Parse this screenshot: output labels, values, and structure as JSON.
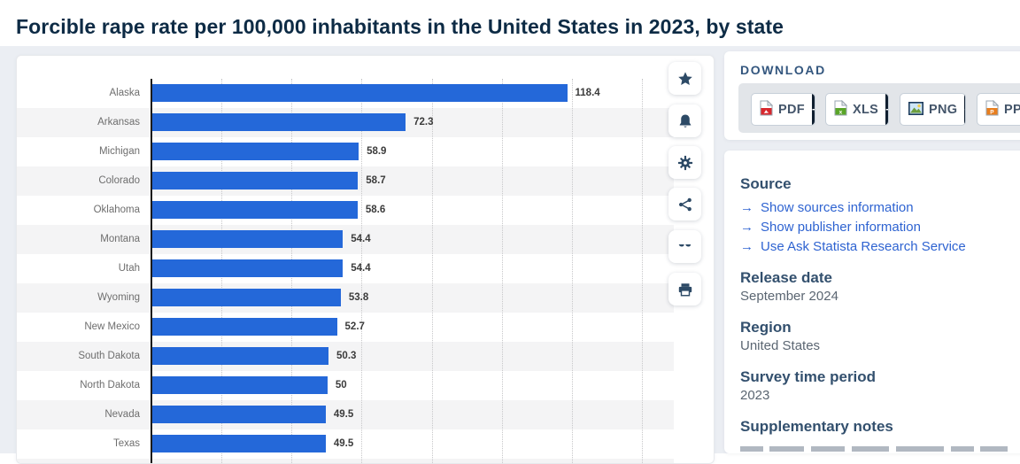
{
  "page": {
    "title": "Forcible rape rate per 100,000 inhabitants in the United States in 2023, by state"
  },
  "chart_data": {
    "type": "bar",
    "orientation": "horizontal",
    "title": "Forcible rape rate per 100,000 inhabitants in the United States in 2023, by state",
    "categories": [
      "Alaska",
      "Arkansas",
      "Michigan",
      "Colorado",
      "Oklahoma",
      "Montana",
      "Utah",
      "Wyoming",
      "New Mexico",
      "South Dakota",
      "North Dakota",
      "Nevada",
      "Texas"
    ],
    "values": [
      118.4,
      72.3,
      58.9,
      58.7,
      58.6,
      54.4,
      54.4,
      53.8,
      52.7,
      50.3,
      50,
      49.5,
      49.5
    ],
    "value_labels": [
      "118.4",
      "72.3",
      "58.9",
      "58.7",
      "58.6",
      "54.4",
      "54.4",
      "53.8",
      "52.7",
      "50.3",
      "50",
      "49.5",
      "49.5"
    ],
    "xlabel": "",
    "ylabel": "",
    "xlim": [
      0,
      140
    ],
    "gridline_step": 20,
    "grid": "dotted-vertical",
    "legend": "none",
    "bar_color": "#2468d9",
    "stripe_color": "#f4f4f5",
    "note": "chart cut off at bottom of viewport after Texas row"
  },
  "toolbar": {
    "icons": [
      {
        "name": "favorite-star-icon"
      },
      {
        "name": "notification-bell-icon"
      },
      {
        "name": "settings-gear-icon"
      },
      {
        "name": "share-icon"
      },
      {
        "name": "citation-quote-icon"
      },
      {
        "name": "print-icon"
      }
    ]
  },
  "download": {
    "label": "DOWNLOAD",
    "buttons": [
      {
        "label": "PDF",
        "plus": "+",
        "icon": "pdf-file-icon",
        "icon_color": "#d8262c"
      },
      {
        "label": "XLS",
        "plus": "+",
        "icon": "xls-file-icon",
        "icon_color": "#59a527"
      },
      {
        "label": "PNG",
        "plus": "+",
        "icon": "png-image-icon",
        "icon_color": "#1d3c5c"
      },
      {
        "label": "PPT",
        "plus": "+",
        "icon": "ppt-file-icon",
        "icon_color": "#e87e1e"
      }
    ]
  },
  "details": {
    "source_heading": "Source",
    "links": [
      "Show sources information",
      "Show publisher information",
      "Use Ask Statista Research Service"
    ],
    "link_arrow": "→",
    "release_date_heading": "Release date",
    "release_date": "September 2024",
    "region_heading": "Region",
    "region": "United States",
    "survey_heading": "Survey time period",
    "survey": "2023",
    "notes_heading": "Supplementary notes"
  },
  "colors": {
    "accent_blue": "#2468d9",
    "link_blue": "#2e63d1",
    "heading_navy": "#33506e",
    "title_navy": "#0d2b45",
    "page_bg": "#ebeef3",
    "plus_segment_bg": "#101f30"
  }
}
